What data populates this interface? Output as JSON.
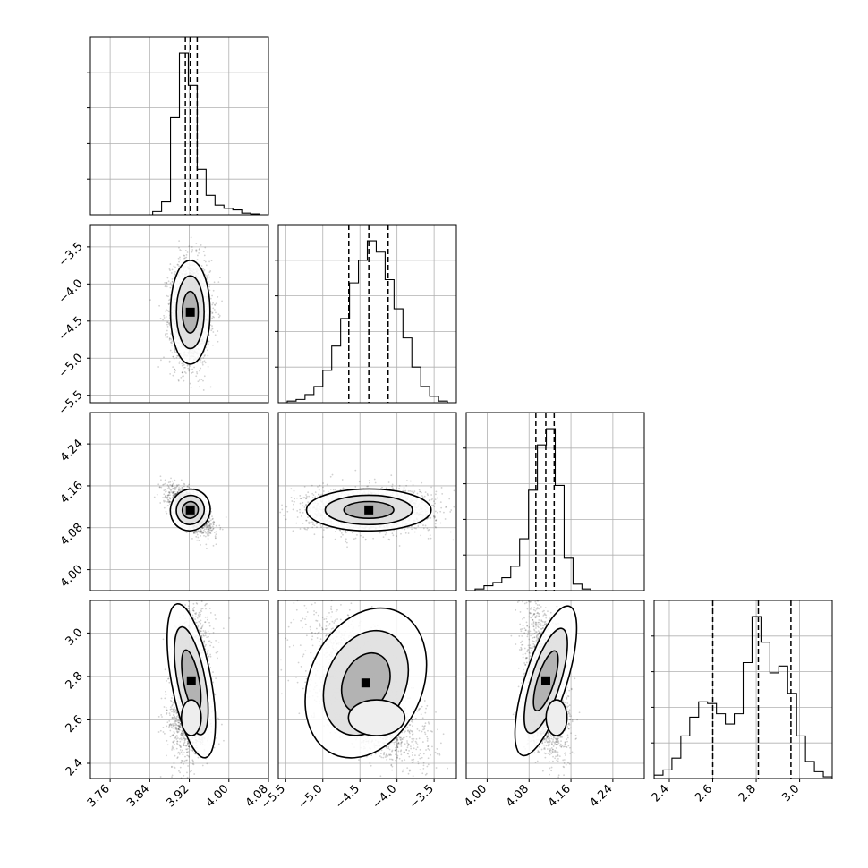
{
  "chart_data": {
    "type": "corner",
    "grid": true,
    "parameters": [
      {
        "index": 0,
        "range": [
          3.72,
          4.08
        ],
        "ticks": [
          3.76,
          3.84,
          3.92,
          4.0,
          4.08
        ],
        "tick_labels": [
          "3.76",
          "3.84",
          "3.92",
          "4.00",
          "4.08"
        ],
        "quantiles": [
          3.912,
          3.922,
          3.936
        ]
      },
      {
        "index": 1,
        "range": [
          -5.6,
          -3.2
        ],
        "ticks": [
          -5.5,
          -5.0,
          -4.5,
          -4.0,
          -3.5
        ],
        "tick_labels": [
          "−5.5",
          "−5.0",
          "−4.5",
          "−4.0",
          "−3.5"
        ],
        "quantiles": [
          -4.65,
          -4.38,
          -4.12
        ]
      },
      {
        "index": 2,
        "range": [
          3.96,
          4.3
        ],
        "ticks": [
          4.0,
          4.08,
          4.16,
          4.24
        ],
        "tick_labels": [
          "4.00",
          "4.08",
          "4.16",
          "4.24"
        ],
        "quantiles": [
          4.093,
          4.112,
          4.128
        ]
      },
      {
        "index": 3,
        "range": [
          2.33,
          3.15
        ],
        "ticks": [
          2.4,
          2.6,
          2.8,
          3.0
        ],
        "tick_labels": [
          "2.4",
          "2.6",
          "2.8",
          "3.0"
        ],
        "quantiles": [
          2.6,
          2.81,
          2.96
        ]
      }
    ],
    "histograms": [
      {
        "param": 0,
        "bin_edges": [
          3.72,
          3.738,
          3.756,
          3.774,
          3.792,
          3.81,
          3.828,
          3.846,
          3.864,
          3.882,
          3.9,
          3.918,
          3.936,
          3.954,
          3.972,
          3.99,
          4.008,
          4.026,
          4.044,
          4.062,
          4.08
        ],
        "counts": [
          0,
          0,
          0,
          0,
          0,
          0,
          0,
          0.02,
          0.08,
          0.6,
          1.0,
          0.8,
          0.28,
          0.12,
          0.06,
          0.04,
          0.03,
          0.01,
          0.005,
          0
        ]
      },
      {
        "param": 1,
        "bin_edges": [
          -5.6,
          -5.48,
          -5.36,
          -5.24,
          -5.12,
          -5.0,
          -4.88,
          -4.76,
          -4.64,
          -4.52,
          -4.4,
          -4.28,
          -4.16,
          -4.04,
          -3.92,
          -3.8,
          -3.68,
          -3.56,
          -3.44,
          -3.32,
          -3.2
        ],
        "counts": [
          0,
          0.01,
          0.02,
          0.05,
          0.1,
          0.2,
          0.35,
          0.52,
          0.74,
          0.88,
          1.0,
          0.93,
          0.76,
          0.58,
          0.4,
          0.22,
          0.1,
          0.04,
          0.01,
          0
        ]
      },
      {
        "param": 2,
        "bin_edges": [
          3.96,
          3.977,
          3.994,
          4.011,
          4.028,
          4.045,
          4.062,
          4.079,
          4.096,
          4.113,
          4.13,
          4.147,
          4.164,
          4.181,
          4.198,
          4.215,
          4.232,
          4.249,
          4.266,
          4.283,
          4.3
        ],
        "counts": [
          0,
          0.01,
          0.03,
          0.05,
          0.08,
          0.15,
          0.32,
          0.62,
          0.9,
          1.0,
          0.65,
          0.2,
          0.04,
          0.01,
          0,
          0,
          0,
          0,
          0,
          0
        ]
      },
      {
        "param": 3,
        "bin_edges": [
          2.33,
          2.371,
          2.412,
          2.453,
          2.494,
          2.535,
          2.576,
          2.617,
          2.658,
          2.699,
          2.74,
          2.781,
          2.822,
          2.863,
          2.904,
          2.945,
          2.986,
          3.027,
          3.068,
          3.109,
          3.15
        ],
        "counts": [
          0.02,
          0.05,
          0.12,
          0.25,
          0.36,
          0.45,
          0.44,
          0.38,
          0.32,
          0.38,
          0.68,
          0.95,
          0.8,
          0.62,
          0.66,
          0.5,
          0.25,
          0.1,
          0.04,
          0.01
        ]
      }
    ],
    "contour_panels": [
      {
        "x_param": 0,
        "y_param": 1,
        "center": [
          3.922,
          -4.38
        ],
        "spread": [
          0.02,
          0.35
        ],
        "corr": 0.0
      },
      {
        "x_param": 0,
        "y_param": 2,
        "center": [
          3.922,
          4.114
        ],
        "spread": [
          0.02,
          0.02
        ],
        "corr": -0.65
      },
      {
        "x_param": 1,
        "y_param": 2,
        "center": [
          -4.38,
          4.114
        ],
        "spread": [
          0.42,
          0.02
        ],
        "corr": 0.0
      },
      {
        "x_param": 0,
        "y_param": 3,
        "center": [
          3.924,
          2.78
        ],
        "spread": [
          0.02,
          0.18
        ],
        "corr": 0.3
      },
      {
        "x_param": 1,
        "y_param": 3,
        "center": [
          -4.42,
          2.77
        ],
        "spread": [
          0.38,
          0.18
        ],
        "corr": -0.7
      },
      {
        "x_param": 2,
        "y_param": 3,
        "center": [
          4.112,
          2.78
        ],
        "spread": [
          0.02,
          0.18
        ],
        "corr": -0.5
      }
    ]
  }
}
